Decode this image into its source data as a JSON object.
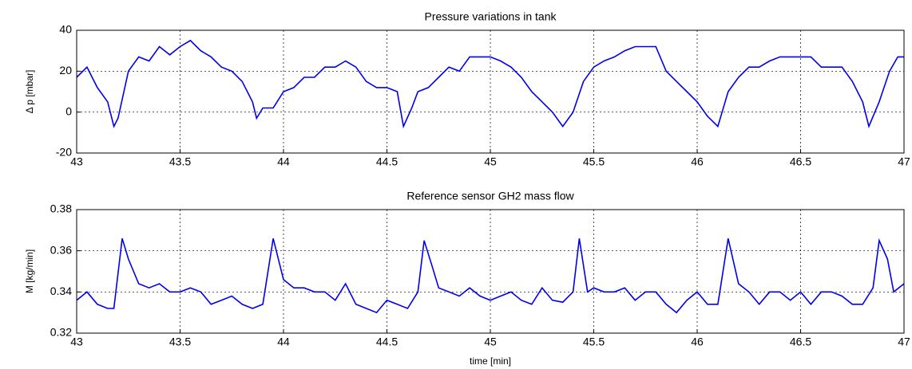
{
  "chart_data": [
    {
      "type": "line",
      "title": "Pressure variations in tank",
      "ylabel": "Δ p [mbar]",
      "x": [
        43.0,
        43.05,
        43.1,
        43.15,
        43.18,
        43.2,
        43.25,
        43.3,
        43.35,
        43.4,
        43.45,
        43.5,
        43.55,
        43.6,
        43.65,
        43.7,
        43.75,
        43.8,
        43.85,
        43.87,
        43.9,
        43.95,
        44.0,
        44.05,
        44.1,
        44.15,
        44.2,
        44.25,
        44.3,
        44.35,
        44.4,
        44.45,
        44.5,
        44.55,
        44.58,
        44.62,
        44.65,
        44.7,
        44.75,
        44.8,
        44.85,
        44.9,
        44.95,
        45.0,
        45.05,
        45.1,
        45.15,
        45.2,
        45.25,
        45.3,
        45.35,
        45.4,
        45.45,
        45.5,
        45.55,
        45.6,
        45.65,
        45.7,
        45.75,
        45.8,
        45.85,
        45.9,
        45.95,
        46.0,
        46.05,
        46.1,
        46.15,
        46.2,
        46.25,
        46.3,
        46.35,
        46.4,
        46.45,
        46.5,
        46.55,
        46.6,
        46.65,
        46.7,
        46.75,
        46.8,
        46.83,
        46.88,
        46.93,
        46.97,
        47.0
      ],
      "values": [
        17,
        22,
        12,
        5,
        -7,
        -3,
        20,
        27,
        25,
        32,
        28,
        32,
        35,
        30,
        27,
        22,
        20,
        15,
        5,
        -3,
        2,
        2,
        10,
        12,
        17,
        17,
        22,
        22,
        25,
        22,
        15,
        12,
        12,
        10,
        -7,
        2,
        10,
        12,
        17,
        22,
        20,
        27,
        27,
        27,
        25,
        22,
        17,
        10,
        5,
        0,
        -7,
        0,
        15,
        22,
        25,
        27,
        30,
        32,
        32,
        32,
        20,
        15,
        10,
        5,
        -2,
        -7,
        10,
        17,
        22,
        22,
        25,
        27,
        27,
        27,
        27,
        22,
        22,
        22,
        15,
        5,
        -7,
        5,
        20,
        27,
        27
      ],
      "color": "#0000ee",
      "xlim": [
        43,
        47
      ],
      "xticks": [
        43,
        43.5,
        44,
        44.5,
        45,
        45.5,
        46,
        46.5,
        47
      ],
      "ylim": [
        -20,
        40
      ],
      "yticks": [
        -20,
        0,
        20,
        40
      ],
      "grid": true
    },
    {
      "type": "line",
      "title": "Reference sensor GH2 mass flow",
      "ylabel": "M [kg/min]",
      "xlabel": "time [min]",
      "x": [
        43.0,
        43.05,
        43.1,
        43.15,
        43.18,
        43.22,
        43.25,
        43.3,
        43.35,
        43.4,
        43.45,
        43.5,
        43.55,
        43.6,
        43.65,
        43.7,
        43.75,
        43.8,
        43.85,
        43.9,
        43.95,
        44.0,
        44.05,
        44.1,
        44.15,
        44.2,
        44.25,
        44.3,
        44.35,
        44.4,
        44.45,
        44.5,
        44.55,
        44.6,
        44.65,
        44.68,
        44.72,
        44.75,
        44.8,
        44.85,
        44.9,
        44.95,
        45.0,
        45.05,
        45.1,
        45.15,
        45.2,
        45.25,
        45.3,
        45.35,
        45.4,
        45.43,
        45.47,
        45.5,
        45.55,
        45.6,
        45.65,
        45.7,
        45.75,
        45.8,
        45.85,
        45.9,
        45.95,
        46.0,
        46.05,
        46.1,
        46.15,
        46.2,
        46.25,
        46.3,
        46.35,
        46.4,
        46.45,
        46.5,
        46.55,
        46.6,
        46.65,
        46.7,
        46.75,
        46.8,
        46.85,
        46.88,
        46.92,
        46.95,
        47.0
      ],
      "values": [
        0.336,
        0.34,
        0.334,
        0.332,
        0.332,
        0.366,
        0.356,
        0.344,
        0.342,
        0.344,
        0.34,
        0.34,
        0.342,
        0.34,
        0.334,
        0.336,
        0.338,
        0.334,
        0.332,
        0.334,
        0.366,
        0.346,
        0.342,
        0.342,
        0.34,
        0.34,
        0.336,
        0.344,
        0.334,
        0.332,
        0.33,
        0.336,
        0.334,
        0.332,
        0.34,
        0.365,
        0.352,
        0.342,
        0.34,
        0.338,
        0.342,
        0.338,
        0.336,
        0.338,
        0.34,
        0.336,
        0.334,
        0.342,
        0.336,
        0.335,
        0.34,
        0.366,
        0.34,
        0.342,
        0.34,
        0.34,
        0.342,
        0.336,
        0.34,
        0.34,
        0.334,
        0.33,
        0.336,
        0.34,
        0.334,
        0.334,
        0.366,
        0.344,
        0.34,
        0.334,
        0.34,
        0.34,
        0.336,
        0.34,
        0.334,
        0.34,
        0.34,
        0.338,
        0.334,
        0.334,
        0.342,
        0.365,
        0.356,
        0.34,
        0.344
      ],
      "color": "#0000ee",
      "xlim": [
        43,
        47
      ],
      "xticks": [
        43,
        43.5,
        44,
        44.5,
        45,
        45.5,
        46,
        46.5,
        47
      ],
      "ylim": [
        0.32,
        0.38
      ],
      "yticks": [
        0.32,
        0.34,
        0.36,
        0.38
      ],
      "grid": true
    }
  ]
}
